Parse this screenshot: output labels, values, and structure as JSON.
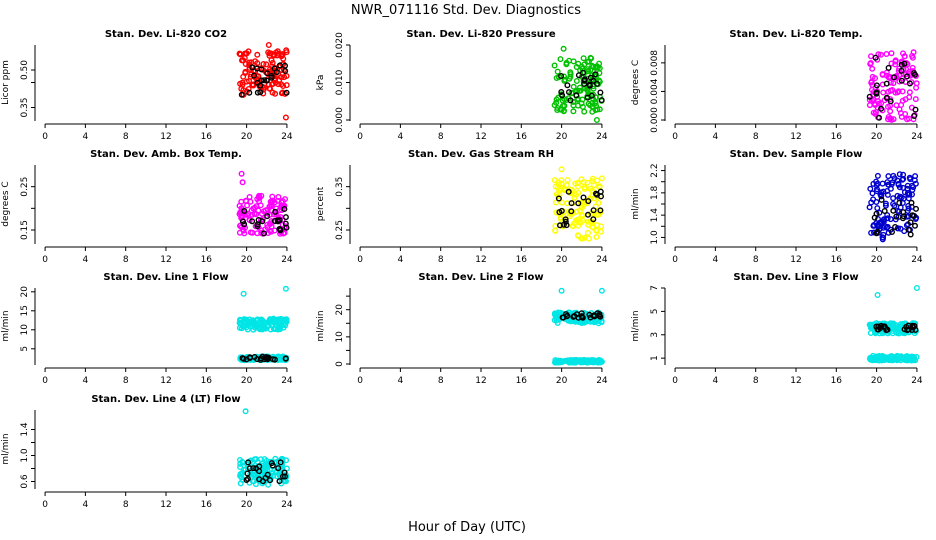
{
  "page_title": "NWR_071116  Std. Dev. Diagnostics",
  "x_axis_label": "Hour of Day (UTC)",
  "chart_data": [
    {
      "type": "scatter",
      "title": "Stan. Dev. Li-820 CO2",
      "ylabel": "Licor ppm",
      "xlim": [
        -1,
        25
      ],
      "xticks": [
        0,
        4,
        8,
        12,
        16,
        20,
        24
      ],
      "ylim": [
        0.3,
        0.6
      ],
      "yticks": [
        0.35,
        0.45,
        0.5
      ],
      "ytick_labels": [
        "0.35",
        "",
        "0.50"
      ],
      "color": "#ff0000",
      "series": [
        {
          "name": "all",
          "x_range": [
            19.3,
            24
          ],
          "y_range": [
            0.4,
            0.58
          ]
        },
        {
          "name": "highlight",
          "color": "#000000",
          "x_range": [
            19.5,
            24
          ],
          "y_range": [
            0.4,
            0.52
          ]
        }
      ],
      "outliers": [
        [
          22.2,
          0.6
        ],
        [
          23.9,
          0.31
        ]
      ]
    },
    {
      "type": "scatter",
      "title": "Stan. Dev. Li-820 Pressure",
      "ylabel": "kPa",
      "xlim": [
        -1,
        25
      ],
      "xticks": [
        0,
        4,
        8,
        12,
        16,
        20,
        24
      ],
      "ylim": [
        0.0,
        0.02
      ],
      "yticks": [
        0.0,
        0.01,
        0.02
      ],
      "ytick_labels": [
        "0.000",
        "0.010",
        "0.020"
      ],
      "color": "#00c000",
      "series": [
        {
          "name": "all",
          "x_range": [
            19.3,
            24
          ],
          "y_range": [
            0.002,
            0.017
          ]
        },
        {
          "name": "highlight",
          "color": "#000000",
          "x_range": [
            19.5,
            24
          ],
          "y_range": [
            0.005,
            0.013
          ]
        }
      ],
      "outliers": [
        [
          20.2,
          0.019
        ],
        [
          23.5,
          0.0
        ]
      ]
    },
    {
      "type": "scatter",
      "title": "Stan. Dev. Li-820 Temp.",
      "ylabel": "degrees C",
      "xlim": [
        -1,
        25
      ],
      "xticks": [
        0,
        4,
        8,
        12,
        16,
        20,
        24
      ],
      "ylim": [
        0.0,
        0.0105
      ],
      "yticks": [
        0.0,
        0.004,
        0.008
      ],
      "ytick_labels": [
        "0.000",
        "0.004",
        "0.008"
      ],
      "color": "#ff00ff",
      "series": [
        {
          "name": "all",
          "x_range": [
            19.3,
            24
          ],
          "y_range": [
            0.0,
            0.0095
          ]
        },
        {
          "name": "highlight",
          "color": "#000000",
          "x_range": [
            19.3,
            24
          ],
          "y_range": [
            0.0,
            0.0095
          ]
        }
      ],
      "outliers": []
    },
    {
      "type": "scatter",
      "title": "Stan. Dev. Amb. Box Temp.",
      "ylabel": "degrees C",
      "xlim": [
        -1,
        25
      ],
      "xticks": [
        0,
        4,
        8,
        12,
        16,
        20,
        24
      ],
      "ylim": [
        0.12,
        0.3
      ],
      "yticks": [
        0.15,
        0.2,
        0.25
      ],
      "ytick_labels": [
        "0.15",
        "",
        "0.25"
      ],
      "color": "#ff00ff",
      "series": [
        {
          "name": "all",
          "x_range": [
            19.3,
            24
          ],
          "y_range": [
            0.14,
            0.23
          ]
        },
        {
          "name": "highlight",
          "color": "#000000",
          "x_range": [
            19.5,
            24
          ],
          "y_range": [
            0.14,
            0.2
          ]
        }
      ],
      "outliers": [
        [
          19.5,
          0.28
        ],
        [
          19.6,
          0.26
        ]
      ]
    },
    {
      "type": "scatter",
      "title": "Stan. Dev. Gas Stream RH",
      "ylabel": "percent",
      "xlim": [
        -1,
        25
      ],
      "xticks": [
        0,
        4,
        8,
        12,
        16,
        20,
        24
      ],
      "ylim": [
        0.22,
        0.4
      ],
      "yticks": [
        0.25,
        0.3,
        0.35
      ],
      "ytick_labels": [
        "0.25",
        "",
        "0.35"
      ],
      "color": "#ffff00",
      "series": [
        {
          "name": "all",
          "x_range": [
            19.3,
            24
          ],
          "y_range": [
            0.23,
            0.37
          ]
        },
        {
          "name": "highlight",
          "color": "#000000",
          "x_range": [
            19.5,
            24
          ],
          "y_range": [
            0.26,
            0.34
          ]
        }
      ],
      "outliers": [
        [
          20.0,
          0.39
        ]
      ]
    },
    {
      "type": "scatter",
      "title": "Stan. Dev. Sample Flow",
      "ylabel": "ml/min",
      "xlim": [
        -1,
        25
      ],
      "xticks": [
        0,
        4,
        8,
        12,
        16,
        20,
        24
      ],
      "ylim": [
        0.9,
        2.3
      ],
      "yticks": [
        1.0,
        1.2,
        1.4,
        1.6,
        1.8,
        2.0,
        2.2
      ],
      "ytick_labels": [
        "1.0",
        "",
        "1.4",
        "",
        "1.8",
        "",
        "2.2"
      ],
      "color": "#0000cc",
      "series": [
        {
          "name": "all",
          "x_range": [
            19.3,
            24
          ],
          "y_range": [
            0.95,
            2.15
          ]
        },
        {
          "name": "highlight",
          "color": "#000000",
          "x_range": [
            19.5,
            24
          ],
          "y_range": [
            1.05,
            1.7
          ]
        }
      ],
      "outliers": []
    },
    {
      "type": "scatter",
      "title": "Stan. Dev. Line 1 Flow",
      "ylabel": "ml/min",
      "xlim": [
        -1,
        25
      ],
      "xticks": [
        0,
        4,
        8,
        12,
        16,
        20,
        24
      ],
      "ylim": [
        1,
        21
      ],
      "yticks": [
        5,
        10,
        15,
        20
      ],
      "ytick_labels": [
        "5",
        "10",
        "15",
        "20"
      ],
      "color": "#00e5e5",
      "series": [
        {
          "name": "band_high",
          "x_range": [
            19.3,
            24
          ],
          "y_range": [
            10,
            13
          ]
        },
        {
          "name": "band_low",
          "x_range": [
            19.3,
            24
          ],
          "y_range": [
            2,
            3
          ]
        },
        {
          "name": "highlight",
          "color": "#000000",
          "x_range": [
            19.5,
            24
          ],
          "y_range": [
            2,
            3
          ]
        }
      ],
      "outliers": [
        [
          19.7,
          19.5
        ],
        [
          23.9,
          20.8
        ]
      ]
    },
    {
      "type": "scatter",
      "title": "Stan. Dev. Line 2 Flow",
      "ylabel": "ml/min",
      "xlim": [
        -1,
        25
      ],
      "xticks": [
        0,
        4,
        8,
        12,
        16,
        20,
        24
      ],
      "ylim": [
        0,
        28
      ],
      "yticks": [
        0,
        5,
        10,
        15,
        20,
        25
      ],
      "ytick_labels": [
        "0",
        "",
        "10",
        "",
        "20",
        ""
      ],
      "color": "#00e5e5",
      "series": [
        {
          "name": "band_high",
          "x_range": [
            19.3,
            24
          ],
          "y_range": [
            15,
            19
          ]
        },
        {
          "name": "band_low",
          "x_range": [
            19.3,
            24
          ],
          "y_range": [
            0.5,
            1.5
          ]
        },
        {
          "name": "highlight",
          "color": "#000000",
          "x_range": [
            19.7,
            24
          ],
          "y_range": [
            17,
            19
          ]
        }
      ],
      "outliers": [
        [
          20.0,
          27
        ],
        [
          24.0,
          27
        ]
      ]
    },
    {
      "type": "scatter",
      "title": "Stan. Dev. Line 3 Flow",
      "ylabel": "ml/min",
      "xlim": [
        -1,
        25
      ],
      "xticks": [
        0,
        4,
        8,
        12,
        16,
        20,
        24
      ],
      "ylim": [
        0.5,
        7
      ],
      "yticks": [
        1,
        3,
        5,
        7
      ],
      "ytick_labels": [
        "1",
        "3",
        "5",
        "7"
      ],
      "color": "#00e5e5",
      "series": [
        {
          "name": "band_high",
          "x_range": [
            19.3,
            24
          ],
          "y_range": [
            3.1,
            4.0
          ]
        },
        {
          "name": "band_low",
          "x_range": [
            19.3,
            24
          ],
          "y_range": [
            0.8,
            1.2
          ]
        },
        {
          "name": "highlight",
          "color": "#000000",
          "x_range": [
            19.7,
            24
          ],
          "y_range": [
            3.4,
            3.8
          ]
        }
      ],
      "outliers": [
        [
          20.1,
          6.4
        ],
        [
          24.0,
          7.0
        ]
      ]
    },
    {
      "type": "scatter",
      "title": "Stan. Dev. Line 4 (LT) Flow",
      "ylabel": "ml/min",
      "xlim": [
        -1,
        25
      ],
      "xticks": [
        0,
        4,
        8,
        12,
        16,
        20,
        24
      ],
      "ylim": [
        0.5,
        1.7
      ],
      "yticks": [
        0.6,
        0.8,
        1.0,
        1.2,
        1.4
      ],
      "ytick_labels": [
        "0.6",
        "",
        "1.0",
        "",
        "1.4"
      ],
      "color": "#00e5e5",
      "series": [
        {
          "name": "all",
          "x_range": [
            19.3,
            24
          ],
          "y_range": [
            0.55,
            0.95
          ]
        },
        {
          "name": "highlight",
          "color": "#000000",
          "x_range": [
            19.7,
            24
          ],
          "y_range": [
            0.6,
            0.9
          ]
        }
      ],
      "outliers": [
        [
          19.9,
          1.68
        ]
      ]
    }
  ]
}
